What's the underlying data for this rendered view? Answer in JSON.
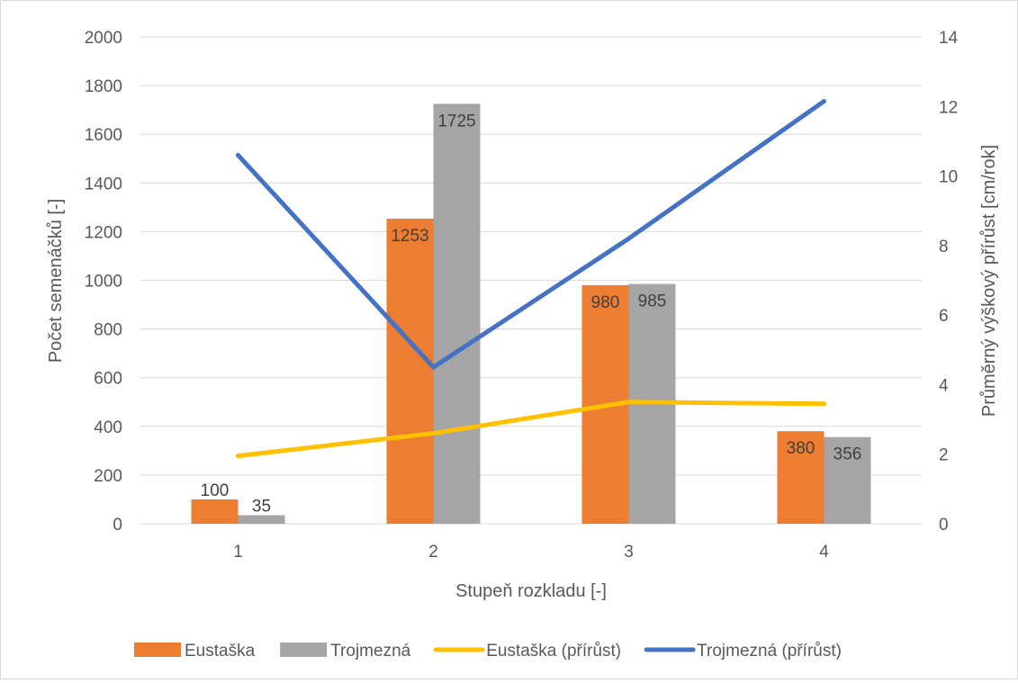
{
  "chart_data": {
    "type": "bar",
    "categories": [
      "1",
      "2",
      "3",
      "4"
    ],
    "xlabel": "Stupeň rozkladu [-]",
    "ylabel": "Počet semenáčků [-]",
    "y2label": "Průměrný výškový přírůst [cm/rok]",
    "ylim": [
      0,
      2000
    ],
    "y2lim": [
      0,
      14
    ],
    "yticks": [
      "0",
      "200",
      "400",
      "600",
      "800",
      "1000",
      "1200",
      "1400",
      "1600",
      "1800",
      "2000"
    ],
    "y2ticks": [
      "0",
      "2",
      "4",
      "6",
      "8",
      "10",
      "12",
      "14"
    ],
    "grid": true,
    "legend_position": "bottom",
    "series": [
      {
        "name": "Eustaška",
        "type": "bar",
        "axis": "left",
        "color": "#ed7d31",
        "values": [
          100,
          1253,
          980,
          380
        ],
        "labels": [
          "100",
          "1253",
          "980",
          "380"
        ]
      },
      {
        "name": "Trojmezná",
        "type": "bar",
        "axis": "left",
        "color": "#a5a5a5",
        "values": [
          35,
          1725,
          985,
          356
        ],
        "labels": [
          "35",
          "1725",
          "985",
          "356"
        ]
      },
      {
        "name": "Eustaška (přírůst)",
        "type": "line",
        "axis": "right",
        "color": "#ffc000",
        "values": [
          1.95,
          2.6,
          3.5,
          3.45
        ]
      },
      {
        "name": "Trojmezná (přírůst)",
        "type": "line",
        "axis": "right",
        "color": "#4472c4",
        "values": [
          10.6,
          4.5,
          8.2,
          12.15
        ]
      }
    ]
  }
}
